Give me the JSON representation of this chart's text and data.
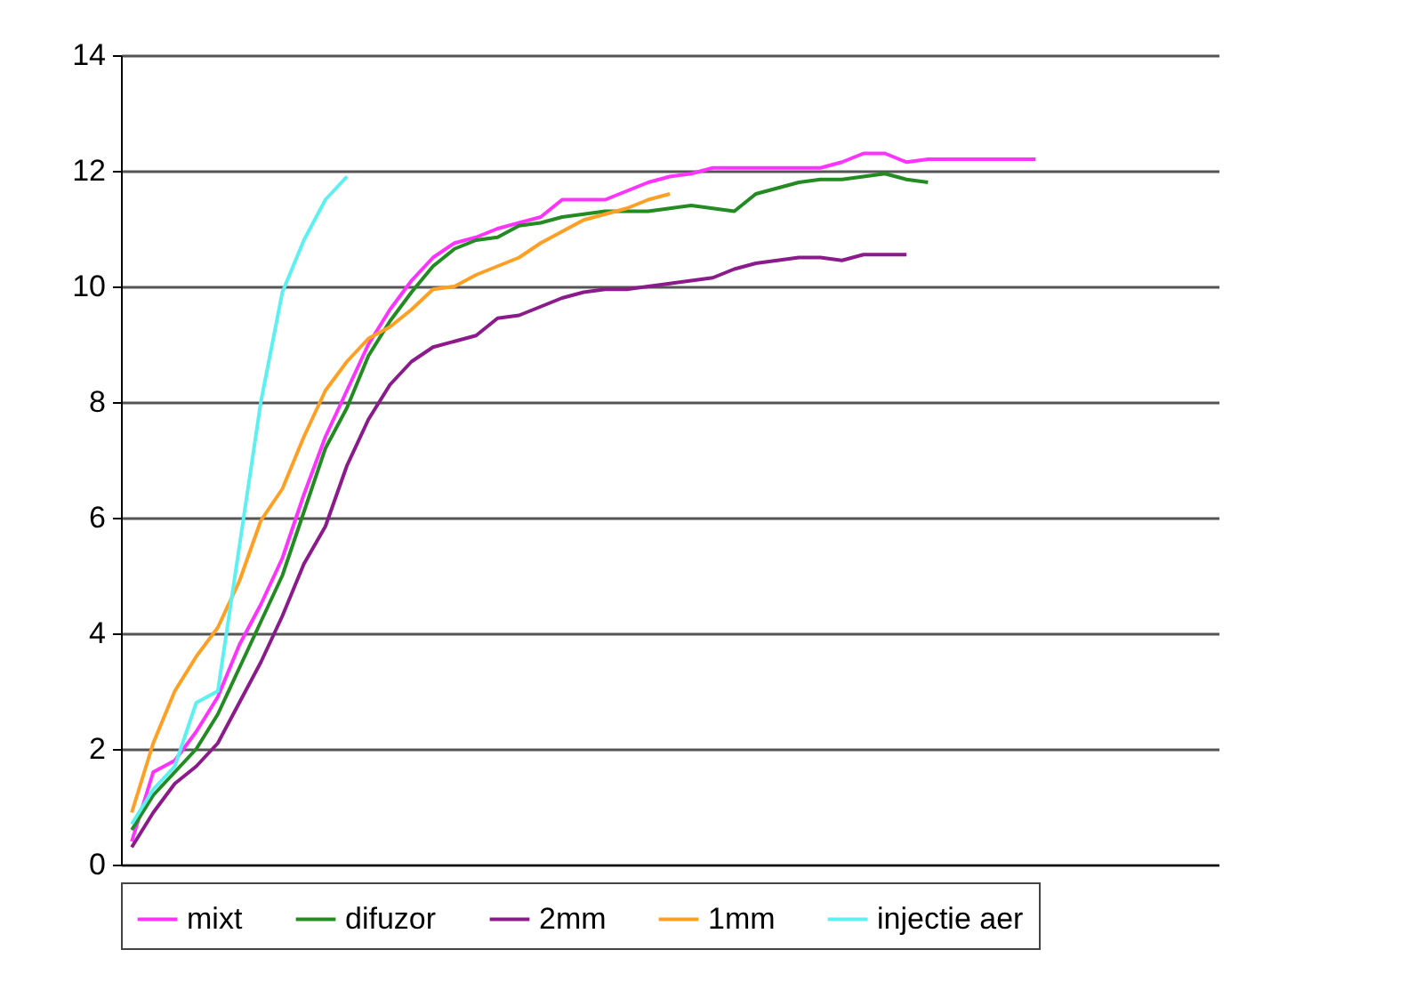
{
  "chart_data": {
    "type": "line",
    "categories": [
      null,
      null,
      null,
      null,
      null,
      null,
      null,
      null,
      null,
      null,
      null,
      null,
      null,
      null,
      null,
      null,
      null,
      null,
      null,
      null,
      null,
      null,
      null,
      null,
      null,
      null,
      null,
      null,
      null,
      null,
      null,
      null,
      null,
      null,
      null,
      null,
      null,
      null,
      null,
      null,
      null,
      null,
      null,
      null,
      null,
      null,
      null,
      null,
      null,
      null,
      null
    ],
    "ylim": [
      0,
      14
    ],
    "yticks": [
      0,
      2,
      4,
      6,
      8,
      10,
      12,
      14
    ],
    "grid": "y",
    "legend": "bottom",
    "marker": "none",
    "line_style": "solid",
    "series": [
      {
        "name": "mixt",
        "color": "#ff33ff",
        "values": [
          0.4,
          1.6,
          1.8,
          2.3,
          2.9,
          3.8,
          4.5,
          5.3,
          6.4,
          7.4,
          8.2,
          9.0,
          9.6,
          10.1,
          10.5,
          10.75,
          10.85,
          11.0,
          11.1,
          11.2,
          11.5,
          11.5,
          11.5,
          11.65,
          11.8,
          11.9,
          11.95,
          12.05,
          12.05,
          12.05,
          12.05,
          12.05,
          12.05,
          12.15,
          12.3,
          12.3,
          12.15,
          12.2,
          12.2,
          12.2,
          12.2,
          12.2,
          12.2,
          null,
          null,
          null,
          null,
          null,
          null,
          null,
          null
        ]
      },
      {
        "name": "difuzor",
        "color": "#228b22",
        "values": [
          0.6,
          1.2,
          1.6,
          2.0,
          2.6,
          3.4,
          4.2,
          5.0,
          6.1,
          7.2,
          7.9,
          8.8,
          9.4,
          9.9,
          10.35,
          10.65,
          10.8,
          10.85,
          11.05,
          11.1,
          11.2,
          11.25,
          11.3,
          11.3,
          11.3,
          11.35,
          11.4,
          11.35,
          11.3,
          11.6,
          11.7,
          11.8,
          11.85,
          11.85,
          11.9,
          11.95,
          11.85,
          11.8,
          null,
          null,
          null,
          null,
          null,
          null,
          null,
          null,
          null,
          null,
          null,
          null,
          null
        ]
      },
      {
        "name": "2mm",
        "color": "#8b1a8b",
        "values": [
          0.3,
          0.9,
          1.4,
          1.7,
          2.1,
          2.8,
          3.5,
          4.3,
          5.2,
          5.85,
          6.9,
          7.7,
          8.3,
          8.7,
          8.95,
          9.05,
          9.15,
          9.45,
          9.5,
          9.65,
          9.8,
          9.9,
          9.95,
          9.95,
          10.0,
          10.05,
          10.1,
          10.15,
          10.3,
          10.4,
          10.45,
          10.5,
          10.5,
          10.45,
          10.55,
          10.55,
          10.55,
          null,
          null,
          null,
          null,
          null,
          null,
          null,
          null,
          null,
          null,
          null,
          null,
          null,
          null
        ]
      },
      {
        "name": "1mm",
        "color": "#ffa024",
        "values": [
          0.9,
          2.1,
          3.0,
          3.6,
          4.1,
          4.9,
          5.95,
          6.5,
          7.4,
          8.2,
          8.7,
          9.1,
          9.3,
          9.6,
          9.95,
          10.0,
          10.2,
          10.35,
          10.5,
          10.75,
          10.95,
          11.15,
          11.25,
          11.35,
          11.5,
          11.6,
          null,
          null,
          null,
          null,
          null,
          null,
          null,
          null,
          null,
          null,
          null,
          null,
          null,
          null,
          null,
          null,
          null,
          null,
          null,
          null,
          null,
          null,
          null,
          null,
          null
        ]
      },
      {
        "name": "injectie aer",
        "color": "#5cf0f0",
        "values": [
          0.7,
          1.3,
          1.7,
          2.8,
          3.0,
          5.5,
          8.0,
          9.9,
          10.8,
          11.5,
          11.9,
          null,
          null,
          null,
          null,
          null,
          null,
          null,
          null,
          null,
          null,
          null,
          null,
          null,
          null,
          null,
          null,
          null,
          null,
          null,
          null,
          null,
          null,
          null,
          null,
          null,
          null,
          null,
          null,
          null,
          null,
          null,
          null,
          null,
          null,
          null,
          null,
          null,
          null,
          null,
          null
        ]
      }
    ]
  }
}
